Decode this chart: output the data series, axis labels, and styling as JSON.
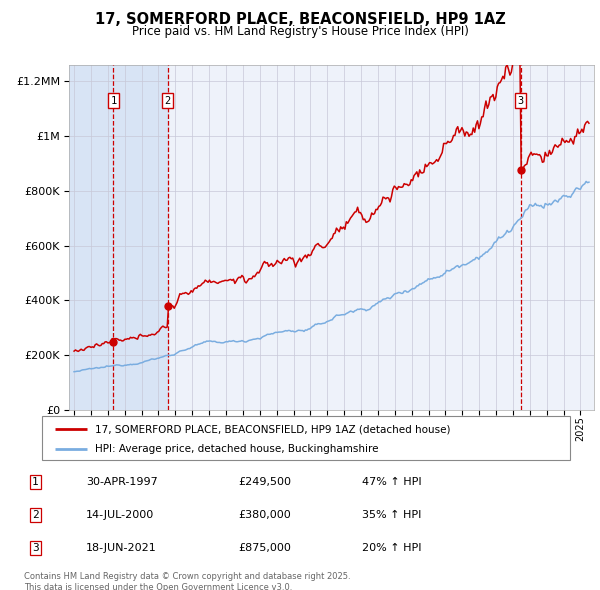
{
  "title_line1": "17, SOMERFORD PLACE, BEACONSFIELD, HP9 1AZ",
  "title_line2": "Price paid vs. HM Land Registry's House Price Index (HPI)",
  "legend_line1": "17, SOMERFORD PLACE, BEACONSFIELD, HP9 1AZ (detached house)",
  "legend_line2": "HPI: Average price, detached house, Buckinghamshire",
  "sale1_date": "30-APR-1997",
  "sale1_year": 1997.33,
  "sale1_price": 249500,
  "sale1_hpi": "47% ↑ HPI",
  "sale2_date": "14-JUL-2000",
  "sale2_year": 2000.54,
  "sale2_price": 380000,
  "sale2_hpi": "35% ↑ HPI",
  "sale3_date": "18-JUN-2021",
  "sale3_year": 2021.46,
  "sale3_price": 875000,
  "sale3_hpi": "20% ↑ HPI",
  "ytick_values": [
    0,
    200000,
    400000,
    600000,
    800000,
    1000000,
    1200000
  ],
  "ymax": 1260000,
  "xmin": 1994.7,
  "xmax": 2025.8,
  "red_color": "#cc0000",
  "blue_color": "#7aade0",
  "background_color": "#ffffff",
  "plot_bg_color": "#eef2fa",
  "grid_color": "#c8c8d8",
  "shade_color": "#d8e4f5",
  "footnote": "Contains HM Land Registry data © Crown copyright and database right 2025.\nThis data is licensed under the Open Government Licence v3.0."
}
